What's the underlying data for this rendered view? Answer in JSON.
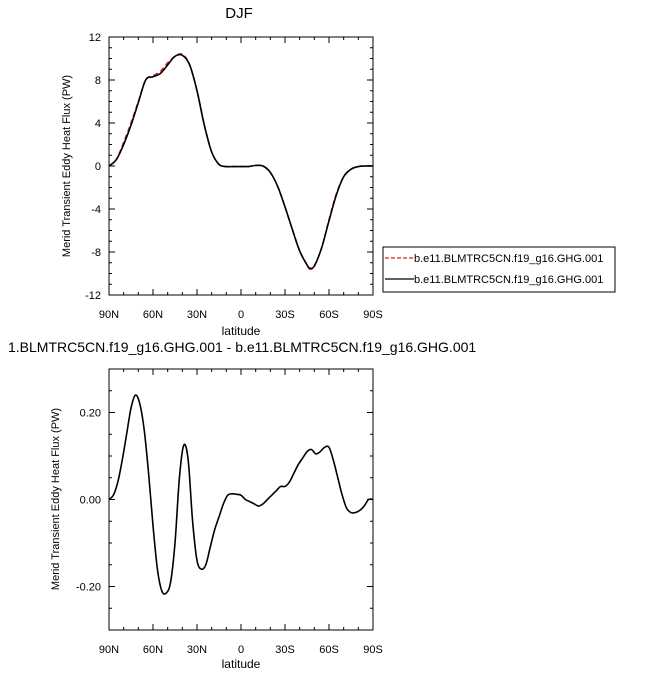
{
  "figure": {
    "top_title": "DJF",
    "bottom_title": "1.BLMTRC5CN.f19_g16.GHG.001 - b.e11.BLMTRC5CN.f19_g16.GHG.001"
  },
  "chart_data": [
    {
      "type": "line",
      "title": "DJF",
      "xlabel": "latitude",
      "ylabel": "Merid Transient Eddy Heat Flux (PW)",
      "xlim": [
        90,
        -90
      ],
      "ylim": [
        -12,
        12
      ],
      "x_ticks": [
        90,
        60,
        30,
        0,
        -30,
        -60,
        -90
      ],
      "x_tick_labels": [
        "90N",
        "60N",
        "30N",
        "0",
        "30S",
        "60S",
        "90S"
      ],
      "y_ticks": [
        -12,
        -8,
        -4,
        0,
        4,
        8,
        12
      ],
      "y_tick_labels": [
        "-12",
        "-8",
        "-4",
        "0",
        "4",
        "8",
        "12"
      ],
      "legend": "outside-right",
      "series": [
        {
          "name": "b.e11.BLMTRC5CN.f19_g16.GHG.001",
          "color": "#dd2222",
          "dash": "dashed",
          "x": [
            90,
            85,
            80,
            75,
            70,
            65,
            60,
            55,
            50,
            45,
            40,
            35,
            30,
            25,
            20,
            15,
            10,
            5,
            0,
            -5,
            -10,
            -15,
            -20,
            -25,
            -30,
            -35,
            -40,
            -45,
            -47,
            -50,
            -55,
            -60,
            -65,
            -70,
            -75,
            -80,
            -85,
            -90
          ],
          "y": [
            0.0,
            0.6,
            2.2,
            4.0,
            6.0,
            8.0,
            8.4,
            8.8,
            9.6,
            10.2,
            10.4,
            9.4,
            7.0,
            3.8,
            1.3,
            0.15,
            -0.05,
            -0.05,
            -0.05,
            -0.05,
            0.05,
            0.0,
            -0.6,
            -1.9,
            -3.8,
            -5.9,
            -7.9,
            -9.2,
            -9.6,
            -9.3,
            -7.6,
            -5.0,
            -2.6,
            -1.0,
            -0.3,
            -0.05,
            0.0,
            0.0
          ]
        },
        {
          "name": "b.e11.BLMTRC5CN.f19_g16.GHG.001",
          "color": "#000000",
          "dash": "solid",
          "x": [
            90,
            85,
            80,
            75,
            70,
            65,
            60,
            55,
            50,
            45,
            40,
            35,
            30,
            25,
            20,
            15,
            10,
            5,
            0,
            -5,
            -10,
            -15,
            -20,
            -25,
            -30,
            -35,
            -40,
            -45,
            -47,
            -50,
            -55,
            -60,
            -65,
            -70,
            -75,
            -80,
            -85,
            -90
          ],
          "y": [
            0.0,
            0.6,
            2.0,
            3.8,
            5.9,
            8.0,
            8.3,
            8.6,
            9.4,
            10.2,
            10.3,
            9.4,
            7.0,
            3.8,
            1.3,
            0.15,
            -0.05,
            -0.05,
            -0.05,
            -0.05,
            0.05,
            0.0,
            -0.6,
            -1.9,
            -3.8,
            -5.9,
            -7.9,
            -9.2,
            -9.5,
            -9.3,
            -7.6,
            -5.1,
            -2.7,
            -1.0,
            -0.3,
            -0.05,
            0.0,
            0.0
          ]
        }
      ]
    },
    {
      "type": "line",
      "title": "1.BLMTRC5CN.f19_g16.GHG.001 - b.e11.BLMTRC5CN.f19_g16.GHG.001",
      "xlabel": "latitude",
      "ylabel": "Merid Transient Eddy Heat Flux (PW)",
      "xlim": [
        90,
        -90
      ],
      "ylim": [
        -0.3,
        0.3
      ],
      "x_ticks": [
        90,
        60,
        30,
        0,
        -30,
        -60,
        -90
      ],
      "x_tick_labels": [
        "90N",
        "60N",
        "30N",
        "0",
        "30S",
        "60S",
        "90S"
      ],
      "y_ticks": [
        -0.2,
        0.0,
        0.2
      ],
      "y_tick_labels": [
        "-0.20",
        "0.00",
        "0.20"
      ],
      "series": [
        {
          "color": "#000000",
          "x": [
            90,
            87,
            84,
            81,
            78,
            75,
            72,
            69,
            66,
            63,
            60,
            57,
            54,
            51,
            48,
            45,
            42,
            39,
            36,
            33,
            30,
            27,
            24,
            21,
            18,
            15,
            12,
            9,
            6,
            3,
            0,
            -3,
            -6,
            -9,
            -12,
            -15,
            -18,
            -21,
            -24,
            -27,
            -30,
            -33,
            -36,
            -39,
            -42,
            -45,
            -48,
            -51,
            -54,
            -57,
            -60,
            -63,
            -66,
            -69,
            -72,
            -75,
            -78,
            -81,
            -84,
            -87,
            -90
          ],
          "y": [
            0.0,
            0.01,
            0.04,
            0.09,
            0.15,
            0.21,
            0.24,
            0.22,
            0.16,
            0.06,
            -0.06,
            -0.16,
            -0.21,
            -0.215,
            -0.19,
            -0.1,
            0.05,
            0.125,
            0.09,
            -0.05,
            -0.14,
            -0.16,
            -0.15,
            -0.11,
            -0.07,
            -0.04,
            -0.01,
            0.01,
            0.013,
            0.012,
            0.01,
            0.0,
            -0.005,
            -0.01,
            -0.015,
            -0.01,
            0.0,
            0.01,
            0.02,
            0.03,
            0.03,
            0.04,
            0.06,
            0.08,
            0.095,
            0.11,
            0.115,
            0.105,
            0.11,
            0.12,
            0.12,
            0.09,
            0.05,
            0.01,
            -0.02,
            -0.03,
            -0.03,
            -0.025,
            -0.015,
            0.0,
            0.0
          ]
        }
      ]
    }
  ]
}
